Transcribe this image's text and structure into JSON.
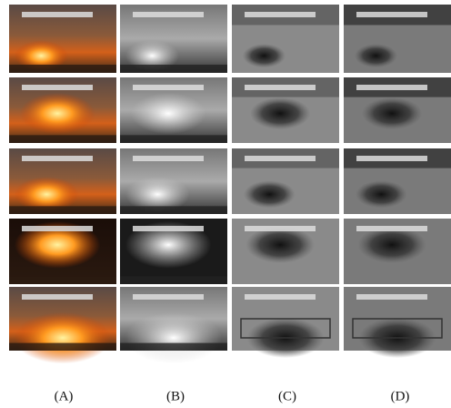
{
  "figure": {
    "panel_labels": [
      "(A)",
      "(B)",
      "(C)",
      "(D)"
    ]
  }
}
